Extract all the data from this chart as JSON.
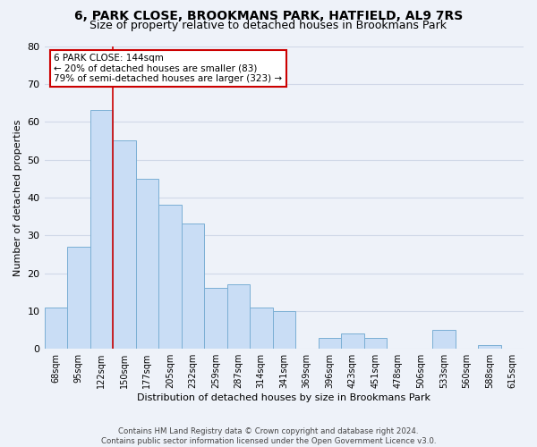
{
  "title": "6, PARK CLOSE, BROOKMANS PARK, HATFIELD, AL9 7RS",
  "subtitle": "Size of property relative to detached houses in Brookmans Park",
  "xlabel": "Distribution of detached houses by size in Brookmans Park",
  "ylabel": "Number of detached properties",
  "bar_labels": [
    "68sqm",
    "95sqm",
    "122sqm",
    "150sqm",
    "177sqm",
    "205sqm",
    "232sqm",
    "259sqm",
    "287sqm",
    "314sqm",
    "341sqm",
    "369sqm",
    "396sqm",
    "423sqm",
    "451sqm",
    "478sqm",
    "506sqm",
    "533sqm",
    "560sqm",
    "588sqm",
    "615sqm"
  ],
  "bar_values": [
    11,
    27,
    63,
    55,
    45,
    38,
    33,
    16,
    17,
    11,
    10,
    0,
    3,
    4,
    3,
    0,
    0,
    5,
    0,
    1,
    0
  ],
  "bar_color": "#c9ddf5",
  "bar_edge_color": "#7bafd4",
  "vline_color": "#cc0000",
  "ylim": [
    0,
    80
  ],
  "yticks": [
    0,
    10,
    20,
    30,
    40,
    50,
    60,
    70,
    80
  ],
  "annotation_title": "6 PARK CLOSE: 144sqm",
  "annotation_line1": "← 20% of detached houses are smaller (83)",
  "annotation_line2": "79% of semi-detached houses are larger (323) →",
  "annotation_box_color": "#ffffff",
  "annotation_box_edge": "#cc0000",
  "footer1": "Contains HM Land Registry data © Crown copyright and database right 2024.",
  "footer2": "Contains public sector information licensed under the Open Government Licence v3.0.",
  "background_color": "#eef2f9",
  "grid_color": "#d0d8e8",
  "title_fontsize": 10,
  "subtitle_fontsize": 9
}
